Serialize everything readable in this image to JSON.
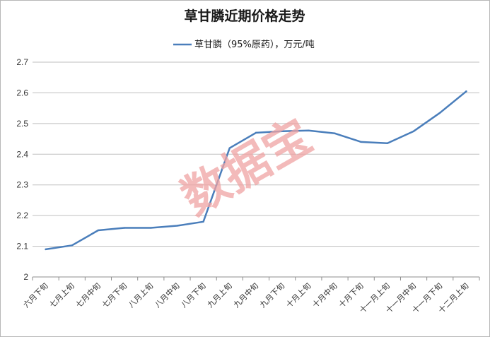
{
  "chart_data": {
    "type": "line",
    "title": "草甘膦近期价格走势",
    "xlabel": "",
    "ylabel": "",
    "categories": [
      "六月下旬",
      "七月上旬",
      "七月中旬",
      "七月下旬",
      "八月上旬",
      "八月中旬",
      "八月下旬",
      "九月上旬",
      "九月中旬",
      "九月下旬",
      "十月上旬",
      "十月中旬",
      "十月下旬",
      "十一月上旬",
      "十一月中旬",
      "十一月下旬",
      "十二月上旬"
    ],
    "series": [
      {
        "name": "草甘膦（95%原药），万元/吨",
        "color": "#4a7ebb",
        "values": [
          2.09,
          2.103,
          2.152,
          2.16,
          2.16,
          2.167,
          2.18,
          2.42,
          2.47,
          2.475,
          2.477,
          2.468,
          2.44,
          2.436,
          2.475,
          2.535,
          2.605
        ]
      }
    ],
    "ylim": [
      2.0,
      2.7
    ],
    "yticks": [
      "2",
      "2.1",
      "2.2",
      "2.3",
      "2.4",
      "2.5",
      "2.6",
      "2.7"
    ],
    "ytick_values": [
      2.0,
      2.1,
      2.2,
      2.3,
      2.4,
      2.5,
      2.6,
      2.7
    ],
    "grid": true,
    "legend_position": "top-center",
    "gridline_color": "#bfbfbf"
  },
  "watermark": "数据宝"
}
